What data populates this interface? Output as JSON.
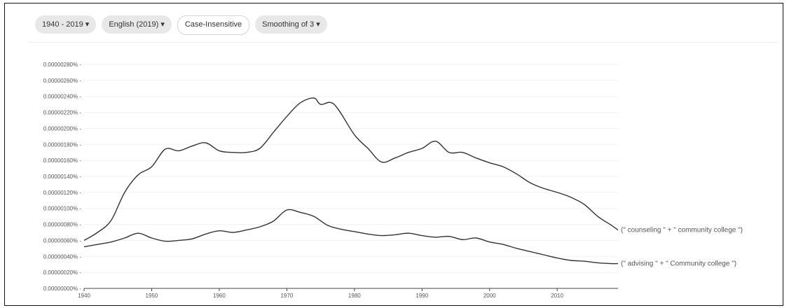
{
  "toolbar": {
    "year_range": "1940 - 2019",
    "corpus": "English (2019)",
    "case": "Case-Insensitive",
    "smoothing": "Smoothing of 3",
    "dropdown_glyph": "▾"
  },
  "colors": {
    "line": "#333333",
    "chip_bg": "#e8e8e8"
  },
  "chart_data": {
    "type": "line",
    "xlim": [
      1940,
      2019
    ],
    "ylim": [
      0,
      2.8e-06
    ],
    "x_ticks": [
      1940,
      1950,
      1960,
      1970,
      1980,
      1990,
      2000,
      2010
    ],
    "y_ticks": [
      {
        "value": 0.0,
        "label": "0.00000000% -"
      },
      {
        "value": 2e-07,
        "label": "0.00000020% -"
      },
      {
        "value": 4e-07,
        "label": "0.00000040% -"
      },
      {
        "value": 6e-07,
        "label": "0.00000060% -"
      },
      {
        "value": 8e-07,
        "label": "0.00000080% -"
      },
      {
        "value": 1e-06,
        "label": "0.00000100% -"
      },
      {
        "value": 1.2e-06,
        "label": "0.00000120% -"
      },
      {
        "value": 1.4e-06,
        "label": "0.00000140% -"
      },
      {
        "value": 1.6e-06,
        "label": "0.00000160% -"
      },
      {
        "value": 1.8e-06,
        "label": "0.00000180% -"
      },
      {
        "value": 2e-06,
        "label": "0.00000200% -"
      },
      {
        "value": 2.2e-06,
        "label": "0.00000220% -"
      },
      {
        "value": 2.4e-06,
        "label": "0.00000240% -"
      },
      {
        "value": 2.6e-06,
        "label": "0.00000260% -"
      },
      {
        "value": 2.8e-06,
        "label": "0.00000280% -"
      }
    ],
    "grid": true,
    "series": [
      {
        "name": "(\" counseling \" + \" community college \")",
        "x": [
          1940,
          1942,
          1944,
          1946,
          1948,
          1950,
          1952,
          1954,
          1956,
          1958,
          1960,
          1962,
          1964,
          1966,
          1968,
          1970,
          1972,
          1974,
          1975,
          1977,
          1980,
          1982,
          1984,
          1986,
          1988,
          1990,
          1992,
          1994,
          1996,
          1998,
          2000,
          2002,
          2004,
          2006,
          2008,
          2010,
          2012,
          2014,
          2016,
          2018,
          2019
        ],
        "y": [
          6e-07,
          7e-07,
          8.5e-07,
          1.2e-06,
          1.42e-06,
          1.52e-06,
          1.74e-06,
          1.72e-06,
          1.78e-06,
          1.82e-06,
          1.72e-06,
          1.7e-06,
          1.7e-06,
          1.75e-06,
          1.95e-06,
          2.15e-06,
          2.32e-06,
          2.38e-06,
          2.3e-06,
          2.3e-06,
          1.92e-06,
          1.75e-06,
          1.58e-06,
          1.63e-06,
          1.7e-06,
          1.75e-06,
          1.84e-06,
          1.7e-06,
          1.7e-06,
          1.63e-06,
          1.57e-06,
          1.52e-06,
          1.43e-06,
          1.32e-06,
          1.25e-06,
          1.2e-06,
          1.14e-06,
          1.05e-06,
          9e-07,
          7.9e-07,
          7.3e-07
        ]
      },
      {
        "name": "(\" advising \" + \" Community college \")",
        "x": [
          1940,
          1942,
          1944,
          1946,
          1948,
          1950,
          1952,
          1954,
          1956,
          1958,
          1960,
          1962,
          1964,
          1966,
          1968,
          1970,
          1972,
          1974,
          1976,
          1978,
          1980,
          1982,
          1984,
          1986,
          1988,
          1990,
          1992,
          1994,
          1996,
          1998,
          2000,
          2002,
          2004,
          2006,
          2008,
          2010,
          2012,
          2014,
          2016,
          2018,
          2019
        ],
        "y": [
          5.2e-07,
          5.5e-07,
          5.8e-07,
          6.3e-07,
          6.9e-07,
          6.3e-07,
          5.9e-07,
          6e-07,
          6.2e-07,
          6.8e-07,
          7.2e-07,
          7e-07,
          7.3e-07,
          7.7e-07,
          8.4e-07,
          9.8e-07,
          9.5e-07,
          9e-07,
          7.9e-07,
          7.4e-07,
          7.1e-07,
          6.8e-07,
          6.6e-07,
          6.7e-07,
          6.9e-07,
          6.6e-07,
          6.4e-07,
          6.5e-07,
          6.1e-07,
          6.3e-07,
          5.8e-07,
          5.5e-07,
          5e-07,
          4.6e-07,
          4.2e-07,
          3.8e-07,
          3.5e-07,
          3.4e-07,
          3.2e-07,
          3.1e-07,
          3.1e-07
        ]
      }
    ]
  }
}
